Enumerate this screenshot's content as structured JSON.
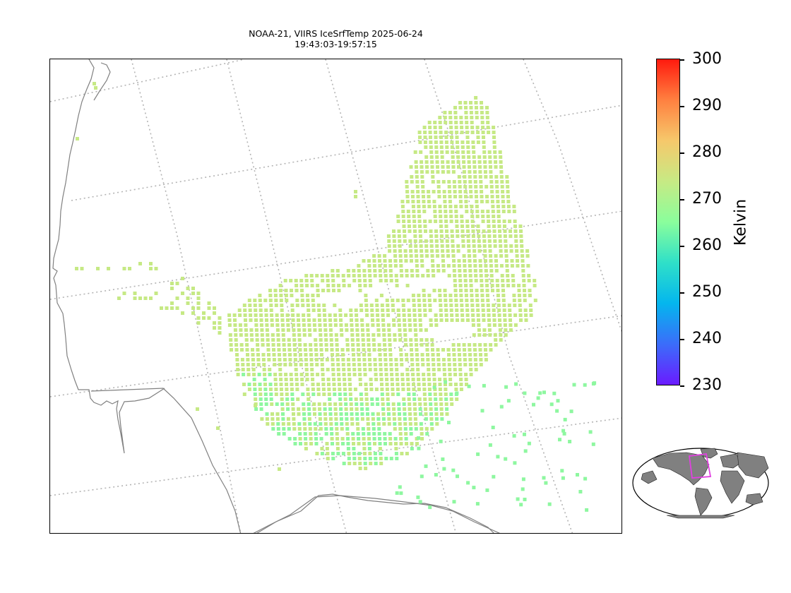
{
  "title_line1": "NOAA-21, VIIRS IceSrfTemp 2025-06-24",
  "title_line2": "19:43:03-19:57:15",
  "colorbar": {
    "label": "Kelvin",
    "min": 230,
    "max": 300,
    "ticks": [
      "300",
      "290",
      "280",
      "270",
      "260",
      "250",
      "240",
      "230"
    ],
    "colors": [
      "#ff1a0e",
      "#ff8040",
      "#f6c86b",
      "#c7ea84",
      "#8afe9c",
      "#2fe0c8",
      "#04b6ee",
      "#3b6dfa",
      "#6a1bff"
    ]
  },
  "colors": {
    "pixel_main": "#c6e985",
    "pixel_cool": "#8ef7a0",
    "coast": "#808080",
    "grid": "#b4b4b4",
    "inset_land": "#808080",
    "inset_box": "#e040e0"
  },
  "icons": [
    "world-inset-map"
  ]
}
